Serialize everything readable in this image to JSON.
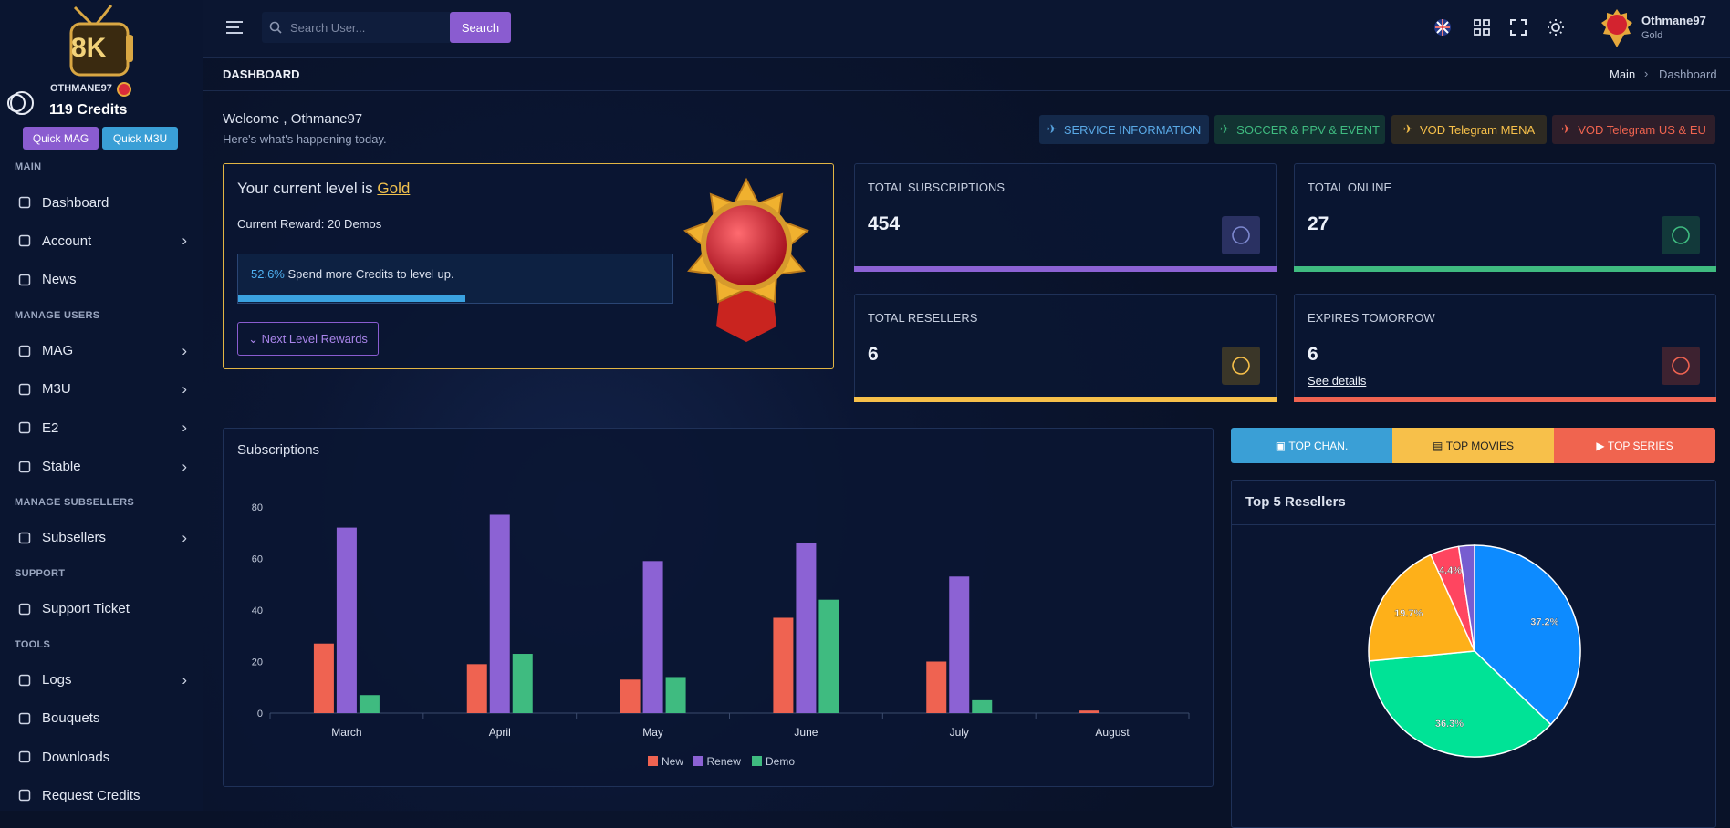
{
  "sidebar": {
    "logo": "8K",
    "username": "OTHMANE97",
    "credits": "119 Credits",
    "quick_buttons": [
      "Quick MAG",
      "Quick M3U"
    ],
    "sections": [
      {
        "title": "MAIN",
        "items": [
          "Dashboard",
          "Account",
          "News"
        ]
      },
      {
        "title": "MANAGE USERS",
        "items": [
          "MAG",
          "M3U",
          "E2",
          "Stable"
        ]
      },
      {
        "title": "MANAGE SUBSELLERS",
        "items": [
          "Subsellers"
        ]
      },
      {
        "title": "SUPPORT",
        "items": [
          "Support Ticket"
        ]
      },
      {
        "title": "TOOLS",
        "items": [
          "Logs",
          "Bouquets",
          "Downloads",
          "Request Credits"
        ]
      }
    ]
  },
  "header": {
    "search_placeholder": "Search User...",
    "search_button": "Search",
    "user_name": "Othmane97",
    "user_level": "Gold"
  },
  "breadcrumb": {
    "page_title": "DASHBOARD",
    "items": [
      "Main",
      "Dashboard"
    ]
  },
  "welcome": {
    "title": "Welcome , Othmane97",
    "subtitle": "Here's what's happening today."
  },
  "channel_buttons": [
    "SERVICE INFORMATION",
    "SOCCER & PPV & EVENT",
    "VOD Telegram MENA",
    "VOD Telegram US & EU"
  ],
  "level_card": {
    "title": "Your current level is",
    "level": "Gold",
    "reward": "Current Reward: 20 Demos",
    "progress": {
      "value": 52.6,
      "label": "52.6%"
    },
    "progress_text": "Spend more Credits to level up.",
    "button": "Next Level Rewards"
  },
  "stats": [
    {
      "label": "TOTAL SUBSCRIPTIONS",
      "value": 454
    },
    {
      "label": "TOTAL ONLINE",
      "value": 27
    },
    {
      "label": "TOTAL RESELLERS",
      "value": 6
    },
    {
      "label": "EXPIRES TOMORROW",
      "value": 6,
      "link": "See details"
    }
  ],
  "top_tabs": [
    "TOP CHAN.",
    "TOP MOVIES",
    "TOP SERIES"
  ],
  "chart_data": [
    {
      "type": "bar",
      "title": "Subscriptions",
      "categories": [
        "March",
        "April",
        "May",
        "June",
        "July",
        "August"
      ],
      "series": [
        {
          "name": "New",
          "color": "#ef6351",
          "values": [
            27,
            19,
            13,
            37,
            20,
            1
          ]
        },
        {
          "name": "Renew",
          "color": "#8c62d4",
          "values": [
            72,
            77,
            59,
            66,
            53,
            0
          ]
        },
        {
          "name": "Demo",
          "color": "#3fbb80",
          "values": [
            7,
            23,
            14,
            44,
            5,
            0
          ]
        }
      ],
      "ylim": [
        0,
        80
      ],
      "yticks": [
        0,
        20,
        40,
        60,
        80
      ],
      "grid": false,
      "legend": "bottom"
    },
    {
      "type": "pie",
      "title": "Top 5 Resellers",
      "values": [
        37.2,
        36.3,
        19.7,
        4.4,
        2.4
      ],
      "value_labels": [
        "37.2%",
        "36.3%",
        "19.7%",
        "4.4%",
        null
      ],
      "colors": [
        "#0d8bff",
        "#00e396",
        "#feb019",
        "#ff4560",
        "#775dd0"
      ]
    }
  ]
}
